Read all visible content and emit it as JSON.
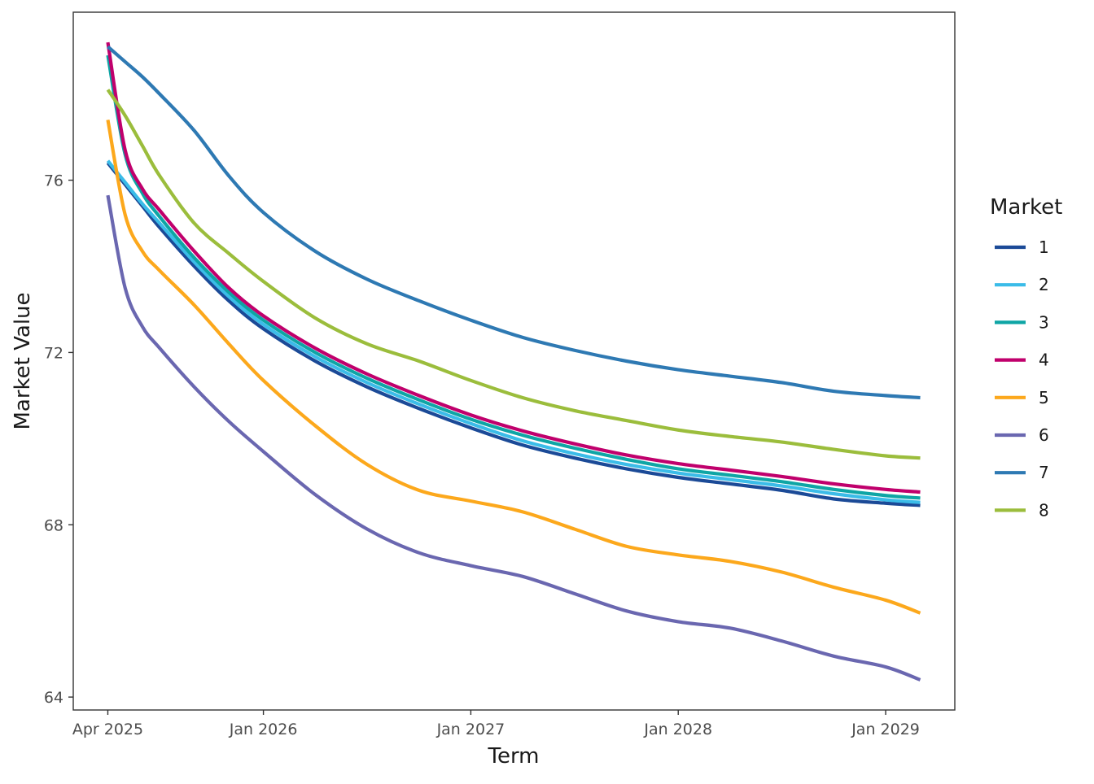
{
  "chart_data": {
    "type": "line",
    "title": "",
    "xlabel": "Term",
    "ylabel": "Market Value",
    "x_start": "2025-04",
    "x_end": "2029-03",
    "x_ticks": [
      {
        "date": "2025-04",
        "label": "Apr 2025"
      },
      {
        "date": "2026-01",
        "label": "Jan 2026"
      },
      {
        "date": "2027-01",
        "label": "Jan 2027"
      },
      {
        "date": "2028-01",
        "label": "Jan 2028"
      },
      {
        "date": "2029-01",
        "label": "Jan 2029"
      }
    ],
    "x_range": [
      "2025-02",
      "2029-05"
    ],
    "y_ticks": [
      64,
      68,
      72,
      76
    ],
    "ylim": [
      63.7,
      79.9
    ],
    "grid": false,
    "legend": {
      "title": "Market",
      "position": "right"
    },
    "series": [
      {
        "name": "1",
        "color": "#1b4a97",
        "points": [
          [
            "2025-04",
            76.4
          ],
          [
            "2025-05",
            75.9
          ],
          [
            "2025-06",
            75.4
          ],
          [
            "2025-07",
            74.9
          ],
          [
            "2025-09",
            74.0
          ],
          [
            "2025-11",
            73.2
          ],
          [
            "2026-01",
            72.55
          ],
          [
            "2026-04",
            71.8
          ],
          [
            "2026-07",
            71.2
          ],
          [
            "2026-10",
            70.7
          ],
          [
            "2027-01",
            70.25
          ],
          [
            "2027-04",
            69.85
          ],
          [
            "2027-07",
            69.55
          ],
          [
            "2027-10",
            69.3
          ],
          [
            "2028-01",
            69.1
          ],
          [
            "2028-04",
            68.95
          ],
          [
            "2028-07",
            68.8
          ],
          [
            "2028-10",
            68.6
          ],
          [
            "2029-01",
            68.5
          ],
          [
            "2029-03",
            68.45
          ]
        ]
      },
      {
        "name": "2",
        "color": "#3bbce8",
        "points": [
          [
            "2025-04",
            76.45
          ],
          [
            "2025-05",
            75.95
          ],
          [
            "2025-06",
            75.45
          ],
          [
            "2025-07",
            75.0
          ],
          [
            "2025-09",
            74.1
          ],
          [
            "2025-11",
            73.3
          ],
          [
            "2026-01",
            72.65
          ],
          [
            "2026-04",
            71.9
          ],
          [
            "2026-07",
            71.3
          ],
          [
            "2026-10",
            70.8
          ],
          [
            "2027-01",
            70.35
          ],
          [
            "2027-04",
            69.95
          ],
          [
            "2027-07",
            69.65
          ],
          [
            "2027-10",
            69.4
          ],
          [
            "2028-01",
            69.2
          ],
          [
            "2028-04",
            69.05
          ],
          [
            "2028-07",
            68.9
          ],
          [
            "2028-10",
            68.72
          ],
          [
            "2029-01",
            68.58
          ],
          [
            "2029-03",
            68.52
          ]
        ]
      },
      {
        "name": "3",
        "color": "#0ea5a5",
        "points": [
          [
            "2025-04",
            78.9
          ],
          [
            "2025-05",
            76.6
          ],
          [
            "2025-06",
            75.7
          ],
          [
            "2025-07",
            75.15
          ],
          [
            "2025-09",
            74.2
          ],
          [
            "2025-11",
            73.4
          ],
          [
            "2026-01",
            72.75
          ],
          [
            "2026-04",
            72.0
          ],
          [
            "2026-07",
            71.4
          ],
          [
            "2026-10",
            70.9
          ],
          [
            "2027-01",
            70.45
          ],
          [
            "2027-04",
            70.08
          ],
          [
            "2027-07",
            69.78
          ],
          [
            "2027-10",
            69.52
          ],
          [
            "2028-01",
            69.3
          ],
          [
            "2028-04",
            69.15
          ],
          [
            "2028-07",
            69.0
          ],
          [
            "2028-10",
            68.82
          ],
          [
            "2029-01",
            68.68
          ],
          [
            "2029-03",
            68.62
          ]
        ]
      },
      {
        "name": "4",
        "color": "#c0006c",
        "points": [
          [
            "2025-04",
            79.2
          ],
          [
            "2025-05",
            76.7
          ],
          [
            "2025-06",
            75.8
          ],
          [
            "2025-07",
            75.3
          ],
          [
            "2025-09",
            74.35
          ],
          [
            "2025-11",
            73.5
          ],
          [
            "2026-01",
            72.85
          ],
          [
            "2026-04",
            72.1
          ],
          [
            "2026-07",
            71.5
          ],
          [
            "2026-10",
            71.0
          ],
          [
            "2027-01",
            70.55
          ],
          [
            "2027-04",
            70.18
          ],
          [
            "2027-07",
            69.88
          ],
          [
            "2027-10",
            69.62
          ],
          [
            "2028-01",
            69.42
          ],
          [
            "2028-04",
            69.27
          ],
          [
            "2028-07",
            69.12
          ],
          [
            "2028-10",
            68.95
          ],
          [
            "2029-01",
            68.82
          ],
          [
            "2029-03",
            68.76
          ]
        ]
      },
      {
        "name": "5",
        "color": "#fca81c",
        "points": [
          [
            "2025-04",
            77.4
          ],
          [
            "2025-05",
            75.2
          ],
          [
            "2025-06",
            74.35
          ],
          [
            "2025-07",
            73.9
          ],
          [
            "2025-09",
            73.1
          ],
          [
            "2025-11",
            72.2
          ],
          [
            "2026-01",
            71.35
          ],
          [
            "2026-04",
            70.3
          ],
          [
            "2026-07",
            69.4
          ],
          [
            "2026-10",
            68.8
          ],
          [
            "2027-01",
            68.55
          ],
          [
            "2027-04",
            68.3
          ],
          [
            "2027-07",
            67.9
          ],
          [
            "2027-10",
            67.5
          ],
          [
            "2028-01",
            67.3
          ],
          [
            "2028-04",
            67.15
          ],
          [
            "2028-07",
            66.9
          ],
          [
            "2028-10",
            66.55
          ],
          [
            "2029-01",
            66.25
          ],
          [
            "2029-03",
            65.95
          ]
        ]
      },
      {
        "name": "6",
        "color": "#6a67b0",
        "points": [
          [
            "2025-04",
            75.65
          ],
          [
            "2025-05",
            73.5
          ],
          [
            "2025-06",
            72.6
          ],
          [
            "2025-07",
            72.1
          ],
          [
            "2025-09",
            71.2
          ],
          [
            "2025-11",
            70.4
          ],
          [
            "2026-01",
            69.7
          ],
          [
            "2026-04",
            68.7
          ],
          [
            "2026-07",
            67.9
          ],
          [
            "2026-10",
            67.35
          ],
          [
            "2027-01",
            67.05
          ],
          [
            "2027-04",
            66.8
          ],
          [
            "2027-07",
            66.4
          ],
          [
            "2027-10",
            66.0
          ],
          [
            "2028-01",
            65.75
          ],
          [
            "2028-04",
            65.6
          ],
          [
            "2028-07",
            65.3
          ],
          [
            "2028-10",
            64.95
          ],
          [
            "2029-01",
            64.7
          ],
          [
            "2029-03",
            64.4
          ]
        ]
      },
      {
        "name": "7",
        "color": "#2e79b3",
        "points": [
          [
            "2025-04",
            79.1
          ],
          [
            "2025-05",
            78.75
          ],
          [
            "2025-06",
            78.4
          ],
          [
            "2025-07",
            78.0
          ],
          [
            "2025-09",
            77.15
          ],
          [
            "2025-11",
            76.1
          ],
          [
            "2026-01",
            75.25
          ],
          [
            "2026-04",
            74.35
          ],
          [
            "2026-07",
            73.7
          ],
          [
            "2026-10",
            73.2
          ],
          [
            "2027-01",
            72.75
          ],
          [
            "2027-04",
            72.35
          ],
          [
            "2027-07",
            72.05
          ],
          [
            "2027-10",
            71.8
          ],
          [
            "2028-01",
            71.6
          ],
          [
            "2028-04",
            71.45
          ],
          [
            "2028-07",
            71.3
          ],
          [
            "2028-10",
            71.1
          ],
          [
            "2029-01",
            71.0
          ],
          [
            "2029-03",
            70.95
          ]
        ]
      },
      {
        "name": "8",
        "color": "#9bbd3c",
        "points": [
          [
            "2025-04",
            78.1
          ],
          [
            "2025-05",
            77.5
          ],
          [
            "2025-06",
            76.8
          ],
          [
            "2025-07",
            76.1
          ],
          [
            "2025-09",
            75.0
          ],
          [
            "2025-11",
            74.3
          ],
          [
            "2026-01",
            73.65
          ],
          [
            "2026-04",
            72.8
          ],
          [
            "2026-07",
            72.2
          ],
          [
            "2026-10",
            71.8
          ],
          [
            "2027-01",
            71.35
          ],
          [
            "2027-04",
            70.95
          ],
          [
            "2027-07",
            70.65
          ],
          [
            "2027-10",
            70.42
          ],
          [
            "2028-01",
            70.2
          ],
          [
            "2028-04",
            70.05
          ],
          [
            "2028-07",
            69.92
          ],
          [
            "2028-10",
            69.75
          ],
          [
            "2029-01",
            69.6
          ],
          [
            "2029-03",
            69.55
          ]
        ]
      }
    ]
  }
}
